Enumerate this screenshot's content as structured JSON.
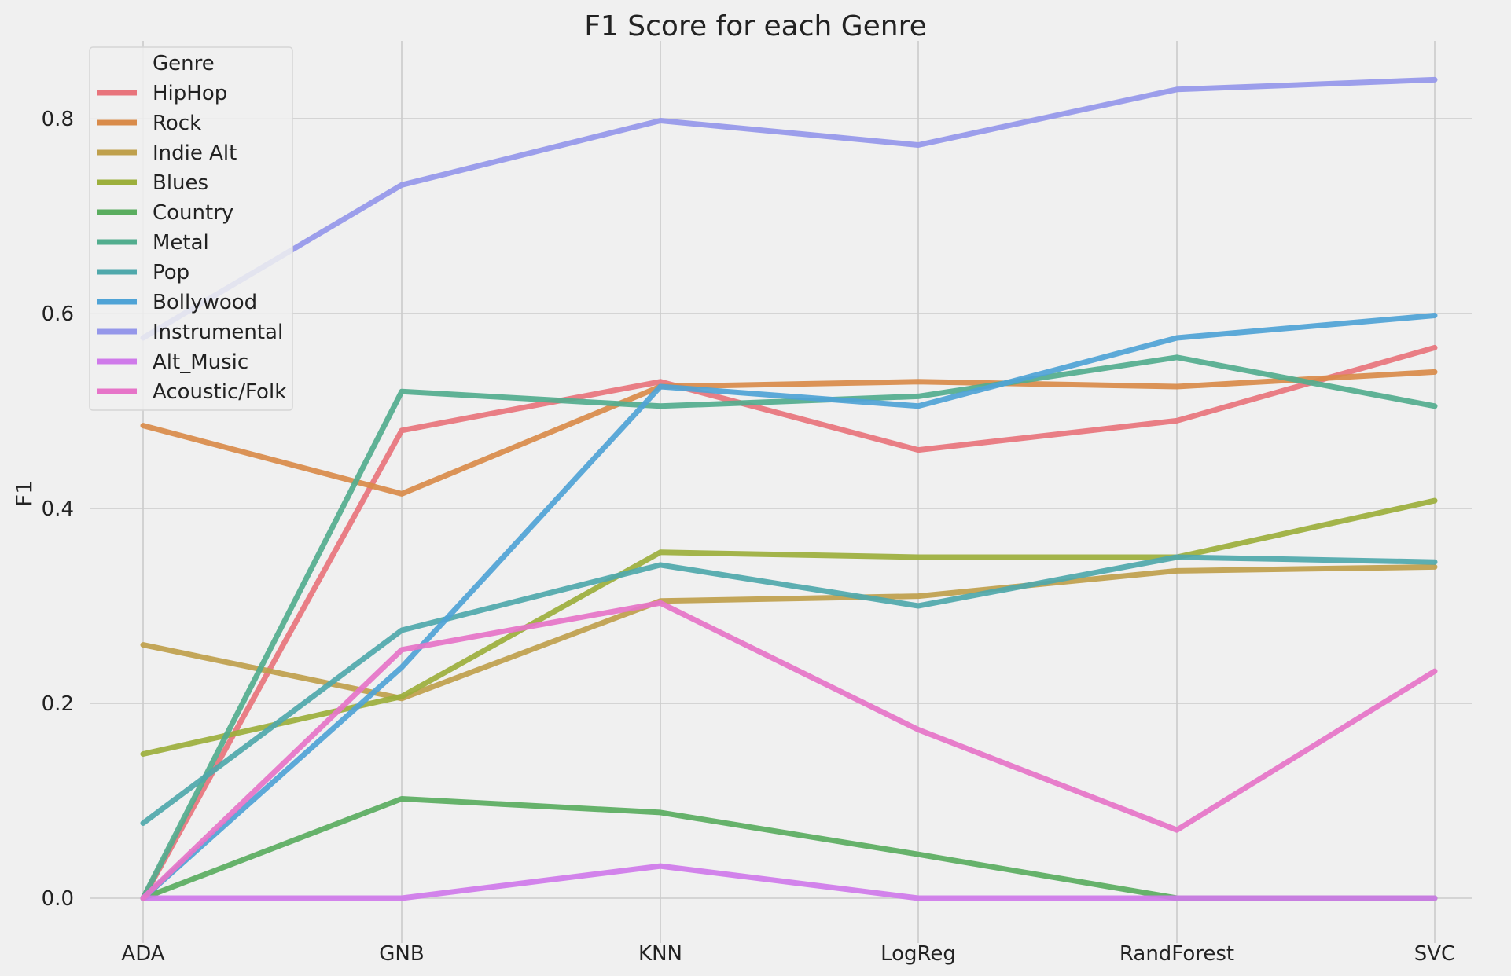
{
  "chart_data": {
    "type": "line",
    "title": "F1 Score for each Genre",
    "xlabel": "",
    "ylabel": "F1",
    "categories": [
      "ADA",
      "GNB",
      "KNN",
      "LogReg",
      "RandForest",
      "SVC"
    ],
    "ylim": [
      -0.065,
      0.88
    ],
    "yticks": [
      0.0,
      0.2,
      0.4,
      0.6,
      0.8
    ],
    "ytick_labels": [
      "0.0",
      "0.2",
      "0.4",
      "0.6",
      "0.8"
    ],
    "grid": true,
    "legend": {
      "title": "Genre",
      "placement": "top-left"
    },
    "series": [
      {
        "name": "HipHop",
        "color": "#e8747c",
        "values": [
          0.0,
          0.48,
          0.53,
          0.46,
          0.49,
          0.565
        ]
      },
      {
        "name": "Rock",
        "color": "#d98b4a",
        "values": [
          0.485,
          0.415,
          0.525,
          0.53,
          0.525,
          0.54
        ]
      },
      {
        "name": "Indie Alt",
        "color": "#bfa04c",
        "values": [
          0.26,
          0.205,
          0.305,
          0.31,
          0.336,
          0.34
        ]
      },
      {
        "name": "Blues",
        "color": "#9caf3c",
        "values": [
          0.148,
          0.207,
          0.355,
          0.35,
          0.35,
          0.408
        ]
      },
      {
        "name": "Country",
        "color": "#5aad5f",
        "values": [
          0.0,
          0.102,
          0.088,
          0.045,
          0.0,
          0.0
        ]
      },
      {
        "name": "Metal",
        "color": "#52ad8e",
        "values": [
          0.0,
          0.52,
          0.505,
          0.515,
          0.555,
          0.505
        ]
      },
      {
        "name": "Pop",
        "color": "#4fa8ab",
        "values": [
          0.077,
          0.275,
          0.342,
          0.3,
          0.35,
          0.345
        ]
      },
      {
        "name": "Bollywood",
        "color": "#4fa3d6",
        "values": [
          0.0,
          0.237,
          0.525,
          0.505,
          0.575,
          0.598
        ]
      },
      {
        "name": "Instrumental",
        "color": "#9597ea",
        "values": [
          0.575,
          0.732,
          0.798,
          0.773,
          0.83,
          0.84
        ]
      },
      {
        "name": "Alt_Music",
        "color": "#cf7aea",
        "values": [
          0.0,
          0.0,
          0.033,
          0.0,
          0.0,
          0.0
        ]
      },
      {
        "name": "Acoustic/Folk",
        "color": "#e674c8",
        "values": [
          0.0,
          0.255,
          0.303,
          0.173,
          0.07,
          0.233
        ]
      }
    ]
  }
}
